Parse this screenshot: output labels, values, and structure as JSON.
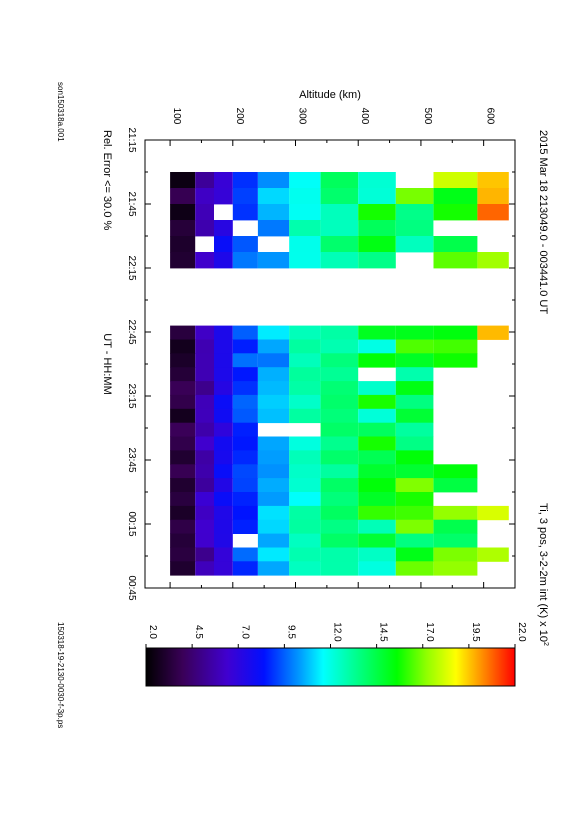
{
  "chart_data": {
    "type": "heatmap",
    "title": "2015 Mar 18   213049.0 - 003441.0 UT",
    "subtitle": "Ti, 3 pos, 3-2-2m int (K) x 10",
    "subtitle_sup": "2",
    "xlabel": "UT - HH:MM",
    "ylabel": "Altitude (km)",
    "note": "Rel. Error <= 30.0 %",
    "file_left": "son150318a.001",
    "file_right": "150318-19-2130-0030-f-3p.ps",
    "x_ticks": [
      "21:15",
      "21:45",
      "22:15",
      "22:45",
      "23:15",
      "23:45",
      "00:15",
      "00:45"
    ],
    "x_tick_hours": [
      21.25,
      21.75,
      22.25,
      22.75,
      23.25,
      23.75,
      24.25,
      24.75
    ],
    "xlim_hours": [
      21.25,
      24.75
    ],
    "y_ticks": [
      "100",
      "200",
      "300",
      "400",
      "500",
      "600"
    ],
    "y_tick_values": [
      100,
      200,
      300,
      400,
      500,
      600
    ],
    "ylim": [
      60,
      650
    ],
    "colorbar": {
      "ticks": [
        "2.0",
        "4.5",
        "7.0",
        "9.5",
        "12.0",
        "14.5",
        "17.0",
        "19.5",
        "22.0"
      ],
      "range": [
        2.0,
        22.0
      ]
    },
    "grid": false,
    "legend": "none",
    "altitude_edges": [
      100,
      140,
      170,
      200,
      240,
      290,
      340,
      400,
      460,
      520,
      590,
      640
    ],
    "segments": [
      {
        "start": 21.5,
        "end": 22.25,
        "max_alt": [
          600,
          600,
          640,
          580,
          590,
          640
        ],
        "gaps": [
          [
            0,
            8
          ],
          [
            5,
            8
          ],
          [
            2,
            2
          ],
          [
            3,
            3
          ],
          [
            4,
            1
          ],
          [
            4,
            4
          ],
          [
            6,
            1
          ],
          [
            6,
            3
          ],
          [
            3,
            9
          ]
        ]
      },
      {
        "start": 22.7,
        "end": 24.65,
        "max_alt": [
          640,
          590,
          590,
          520,
          520,
          520,
          520,
          520,
          520,
          520,
          590,
          590,
          590,
          640,
          590,
          590,
          640,
          590
        ],
        "gaps": [
          [
            7,
            4
          ],
          [
            7,
            5
          ],
          [
            3,
            7
          ],
          [
            12,
            9
          ],
          [
            15,
            3
          ]
        ]
      }
    ]
  }
}
